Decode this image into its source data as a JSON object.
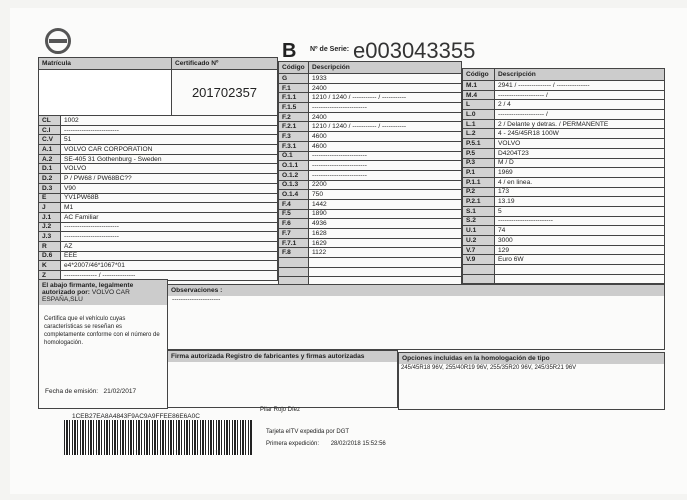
{
  "header": {
    "logo": "VOLVO",
    "form_letter": "B",
    "serie_label": "Nº de Serie:",
    "serie_value": "e003043355"
  },
  "left": {
    "matricula_label": "Matrícula",
    "certificado_label": "Certificado Nº",
    "certificado_value": "201702357",
    "rows": [
      [
        "CL",
        "1002"
      ],
      [
        "C.I",
        "-------------------------"
      ],
      [
        "C.V",
        "51"
      ],
      [
        "A.1",
        "VOLVO CAR CORPORATION"
      ],
      [
        "A.2",
        "SE-405 31 Gothenburg - Sweden"
      ],
      [
        "D.1",
        "VOLVO"
      ],
      [
        "D.2",
        "P / PW68 / PW68BC??"
      ],
      [
        "D.3",
        "V90"
      ],
      [
        "E",
        "YV1PW68B"
      ],
      [
        "J",
        "M1"
      ],
      [
        "J.1",
        "AC Familiar"
      ],
      [
        "J.2",
        "-------------------------"
      ],
      [
        "J.3",
        "-------------------------"
      ],
      [
        "R",
        "AZ"
      ],
      [
        "D.6",
        "EEE"
      ],
      [
        "K",
        "e4*2007/46*1067*01"
      ],
      [
        "Z",
        "--------------- / ---------------"
      ]
    ]
  },
  "middle": {
    "code_label": "Código",
    "desc_label": "Descripción",
    "rows": [
      [
        "G",
        "1933"
      ],
      [
        "F.1",
        "2400"
      ],
      [
        "F.1.1",
        "1210 / 1240 / ----------- / -----------"
      ],
      [
        "F.1.5",
        "-------------------------"
      ],
      [
        "F.2",
        "2400"
      ],
      [
        "F.2.1",
        "1210 / 1240 / ----------- / -----------"
      ],
      [
        "F.3",
        "4600"
      ],
      [
        "F.3.1",
        "4600"
      ],
      [
        "O.1",
        "-------------------------"
      ],
      [
        "O.1.1",
        "-------------------------"
      ],
      [
        "O.1.2",
        "-------------------------"
      ],
      [
        "O.1.3",
        "2200"
      ],
      [
        "O.1.4",
        "750"
      ],
      [
        "F.4",
        "1442"
      ],
      [
        "F.5",
        "1890"
      ],
      [
        "F.6",
        "4936"
      ],
      [
        "F.7",
        "1628"
      ],
      [
        "F.7.1",
        "1629"
      ],
      [
        "F.8",
        "1122"
      ],
      [
        "",
        ""
      ],
      [
        "",
        ""
      ],
      [
        "",
        ""
      ]
    ]
  },
  "right": {
    "code_label": "Código",
    "desc_label": "Descripción",
    "rows": [
      [
        "M.1",
        "2941 / --------------- / ---------------"
      ],
      [
        "M.4",
        "--------------------- /"
      ],
      [
        "L",
        "2 / 4"
      ],
      [
        "L.0",
        "--------------------- /"
      ],
      [
        "L.1",
        "2 / Delante y detras. / PERMANENTE"
      ],
      [
        "L.2",
        "4 - 245/45R18 100W"
      ],
      [
        "P.5.1",
        "VOLVO"
      ],
      [
        "P.5",
        "D4204T23"
      ],
      [
        "P.3",
        "M / D"
      ],
      [
        "P.1",
        "1969"
      ],
      [
        "P.1.1",
        "4 / en linea."
      ],
      [
        "P.2",
        "173"
      ],
      [
        "P.2.1",
        "13.19"
      ],
      [
        "S.1",
        "5"
      ],
      [
        "S.2",
        "-------------------------"
      ],
      [
        "U.1",
        "74"
      ],
      [
        "U.2",
        "3000"
      ],
      [
        "V.7",
        "129"
      ],
      [
        "V.9",
        "Euro 6W"
      ],
      [
        "",
        ""
      ],
      [
        "",
        ""
      ]
    ]
  },
  "bottom": {
    "firmante_label": "El abajo firmante, legalmente autorizado por:",
    "firmante_value": "VOLVO CAR ESPAÑA,SLU",
    "certifica_text": "Certifica que el vehículo cuyas características se reseñan es completamente conforme con el número de homologación.",
    "fecha_label": "Fecha de emisión:",
    "fecha_value": "21/02/2017",
    "observaciones_label": "Observaciones :",
    "observaciones_value": "----------------------",
    "firma_label": "Firma autorizada Registro de fabricantes y firmas autorizadas",
    "firmante_nombre": "Pilar Rojo Díez",
    "opciones_label": "Opciones incluidas en la homologación de tipo",
    "opciones_value": "245/45R18 96V, 255/40R19 96V, 255/35R20 96V, 245/35R21 96V",
    "barcode_text": "1CEB27EA8A4843F9AC9A9FFEE86E6A0C",
    "tarjeta_text": "Tarjeta eITV expedida por DGT",
    "primera_label": "Primera expedición:",
    "primera_value": "28/02/2018 15:52:56"
  }
}
